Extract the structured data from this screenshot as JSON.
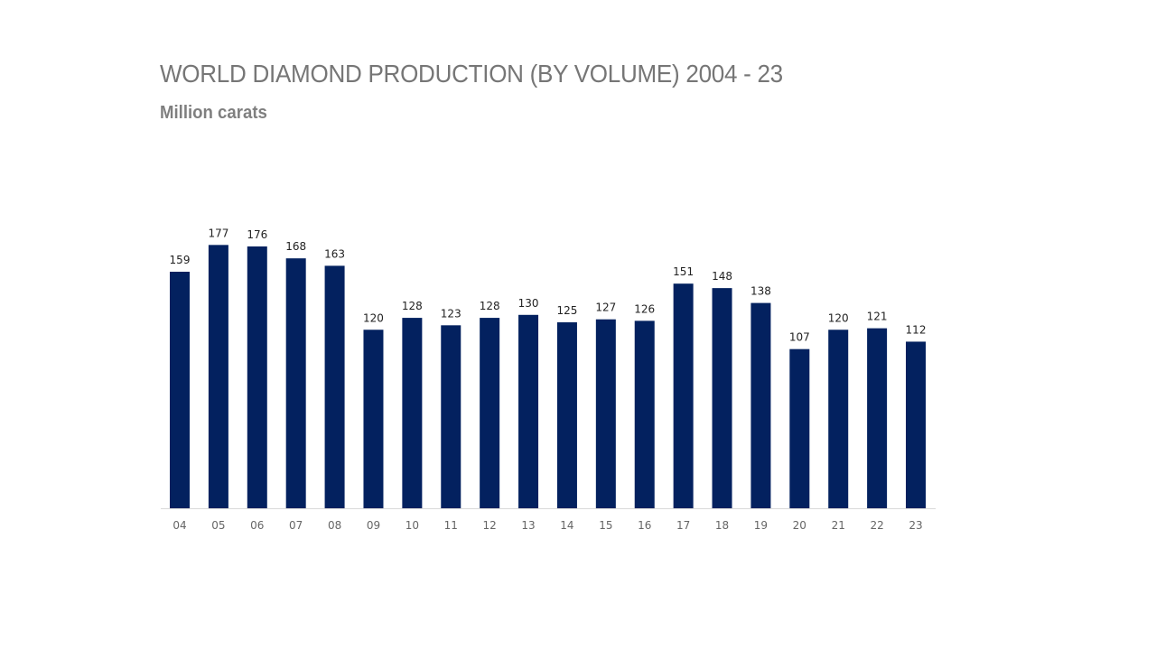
{
  "chart_data": {
    "type": "bar",
    "title": "WORLD DIAMOND PRODUCTION (BY VOLUME) 2004 - 23",
    "subtitle": "Million carats",
    "categories": [
      "04",
      "05",
      "06",
      "07",
      "08",
      "09",
      "10",
      "11",
      "12",
      "13",
      "14",
      "15",
      "16",
      "17",
      "18",
      "19",
      "20",
      "21",
      "22",
      "23"
    ],
    "values": [
      159,
      177,
      176,
      168,
      163,
      120,
      128,
      123,
      128,
      130,
      125,
      127,
      126,
      151,
      148,
      138,
      107,
      120,
      121,
      112
    ],
    "xlabel": "",
    "ylabel": "",
    "ylim": [
      0,
      180
    ],
    "grid": false,
    "data_labels": true,
    "bar_color": "#03215F",
    "axis_color": "#D9D9D9"
  }
}
